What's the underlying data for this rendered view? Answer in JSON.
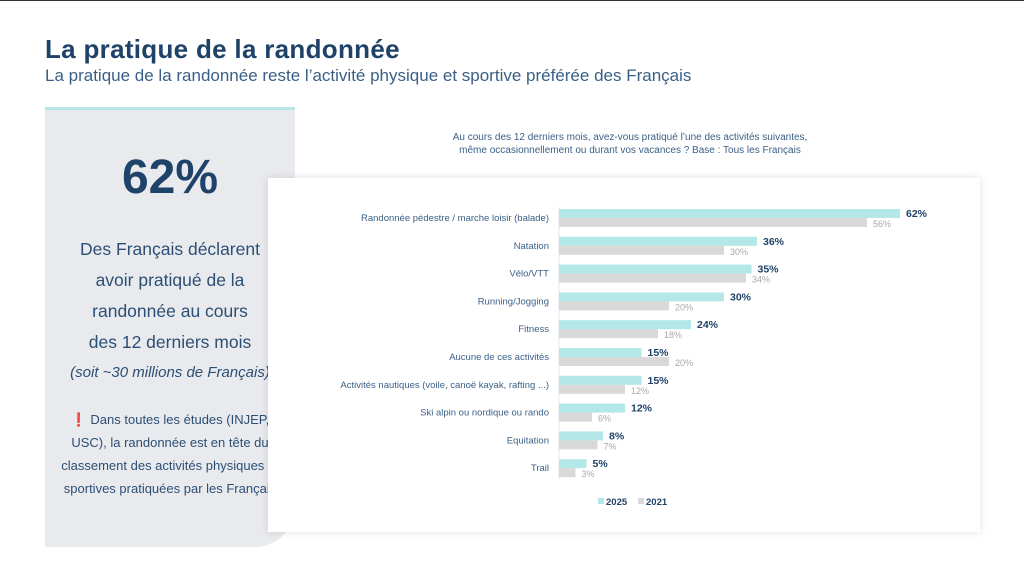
{
  "title": "La pratique de la randonnée",
  "subtitle": "La pratique de la randonnée reste l’activité physique et sportive préférée des Français",
  "panel": {
    "big": "62%",
    "lines": [
      "Des Français déclarent",
      "avoir pratiqué de la",
      "randonnée au cours",
      "des 12 derniers mois"
    ],
    "italic": "(soit ~30 millions de Français)",
    "note": "❗ Dans toutes les études (INJEP, USC), la randonnée est en tête du classement des activités physiques et sportives pratiquées par les Français"
  },
  "chart_data": {
    "type": "bar",
    "orientation": "horizontal",
    "title": "Au cours des 12 derniers mois, avez-vous pratiqué l’une des activités suivantes, même occasionnellement ou durant vos vacances ? Base : Tous les Français",
    "title_lines": [
      "Au cours des 12 derniers mois, avez-vous pratiqué l’une des activités suivantes,",
      "même occasionnellement ou durant vos vacances ? Base : Tous les Français"
    ],
    "categories": [
      "Randonnée pédestre / marche loisir (balade)",
      "Natation",
      "Vélo/VTT",
      "Running/Jogging",
      "Fitness",
      "Aucune de ces activités",
      "Activités nautiques (voile, canoë kayak, rafting ...)",
      "Ski alpin ou nordique ou rando",
      "Equitation",
      "Trail"
    ],
    "series": [
      {
        "name": "2025",
        "color": "#b3e7e8",
        "values": [
          62,
          36,
          35,
          30,
          24,
          15,
          15,
          12,
          8,
          5
        ]
      },
      {
        "name": "2021",
        "color": "#d9d9d9",
        "values": [
          56,
          30,
          34,
          20,
          18,
          20,
          12,
          6,
          7,
          3
        ]
      }
    ],
    "unit": "%",
    "legend": "bottom",
    "xlim": [
      0,
      62
    ]
  }
}
